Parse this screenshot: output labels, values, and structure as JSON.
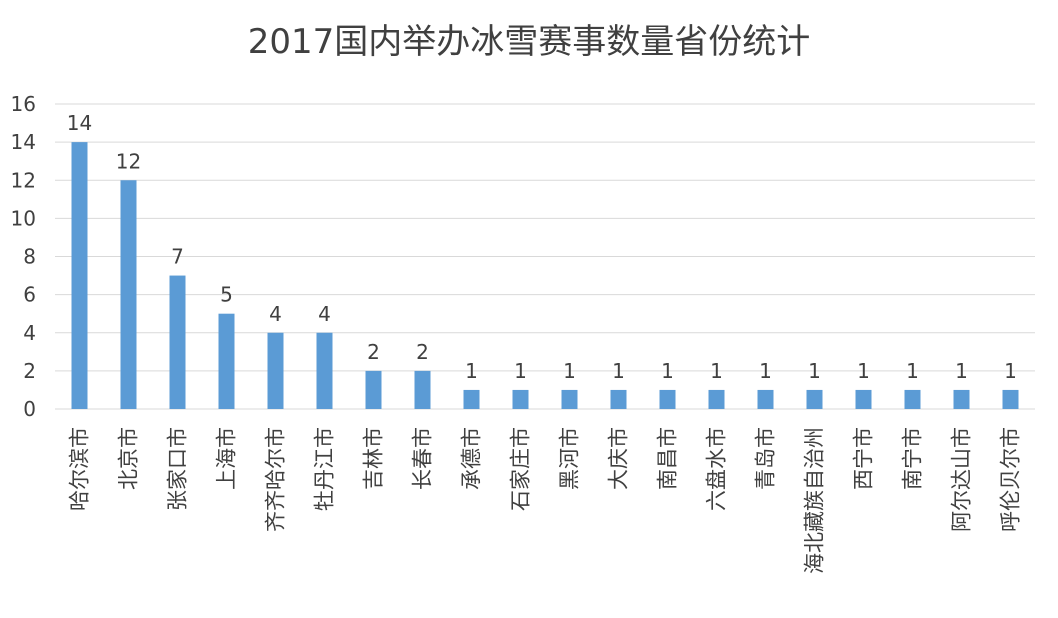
{
  "chart_data": {
    "type": "bar",
    "title": "2017国内举办冰雪赛事数量省份统计",
    "xlabel": "",
    "ylabel": "",
    "ylim": [
      0,
      16
    ],
    "yticks": [
      0,
      2,
      4,
      6,
      8,
      10,
      12,
      14,
      16
    ],
    "grid": true,
    "legend": "none",
    "bar_color": "#5B9BD5",
    "grid_color": "#D9D9D9",
    "categories": [
      "哈尔滨市",
      "北京市",
      "张家口市",
      "上海市",
      "齐齐哈尔市",
      "牡丹江市",
      "吉林市",
      "长春市",
      "承德市",
      "石家庄市",
      "黑河市",
      "大庆市",
      "南昌市",
      "六盘水市",
      "青岛市",
      "海北藏族自治州",
      "西宁市",
      "南宁市",
      "阿尔达山市",
      "呼伦贝尔市"
    ],
    "values": [
      14,
      12,
      7,
      5,
      4,
      4,
      2,
      2,
      1,
      1,
      1,
      1,
      1,
      1,
      1,
      1,
      1,
      1,
      1,
      1
    ]
  }
}
